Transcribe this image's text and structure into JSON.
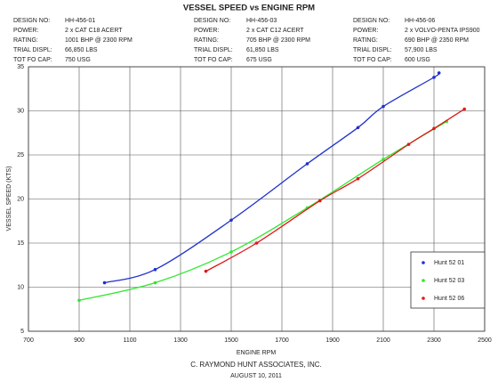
{
  "chart_data": {
    "type": "line",
    "title": "VESSEL SPEED vs ENGINE RPM",
    "specs": [
      [
        [
          "DESIGN NO:",
          "HH-456-01"
        ],
        [
          "POWER:",
          "2 x CAT C18 ACERT"
        ],
        [
          "RATING:",
          "1001 BHP @ 2300 RPM"
        ],
        [
          "TRIAL DISPL:",
          "66,850 LBS"
        ],
        [
          "TOT FO CAP:",
          "750 USG"
        ]
      ],
      [
        [
          "DESIGN NO:",
          "HH-456-03"
        ],
        [
          "POWER:",
          "2 x CAT C12 ACERT"
        ],
        [
          "RATING:",
          "705 BHP @ 2300 RPM"
        ],
        [
          "TRIAL DISPL:",
          "61,850 LBS"
        ],
        [
          "TOT FO CAP:",
          "675 USG"
        ]
      ],
      [
        [
          "DESIGN NO:",
          "HH-456-06"
        ],
        [
          "POWER:",
          "2 x VOLVO-PENTA IPS900"
        ],
        [
          "RATING:",
          "690 BHP @ 2350 RPM"
        ],
        [
          "TRIAL DISPL:",
          "57,900 LBS"
        ],
        [
          "TOT FO CAP:",
          "600 USG"
        ]
      ]
    ],
    "xlabel": "ENGINE RPM",
    "ylabel": "VESSEL SPEED (KTS)",
    "xlim": [
      700,
      2500
    ],
    "xticks": [
      700,
      900,
      1100,
      1300,
      1500,
      1700,
      1900,
      2100,
      2300,
      2500
    ],
    "ylim": [
      5,
      35
    ],
    "yticks": [
      5,
      10,
      15,
      20,
      25,
      30,
      35
    ],
    "grid": true,
    "legend": "lower right",
    "series": [
      {
        "name": "Hunt 52 01",
        "color": "#1f2fd0",
        "x": [
          1000,
          1200,
          1500,
          1800,
          2000,
          2100,
          2300,
          2320
        ],
        "values": [
          10.5,
          12,
          17.6,
          24,
          28.1,
          30.5,
          33.8,
          34.3
        ]
      },
      {
        "name": "Hunt 52 03",
        "color": "#2ee82e",
        "x": [
          900,
          1200,
          1500,
          1800,
          2100,
          2350
        ],
        "values": [
          8.5,
          10.5,
          14,
          19,
          24.5,
          28.8
        ]
      },
      {
        "name": "Hunt 52 06",
        "color": "#e01818",
        "x": [
          1400,
          1600,
          1850,
          2000,
          2200,
          2300,
          2420
        ],
        "values": [
          11.8,
          15,
          19.8,
          22.3,
          26.2,
          28,
          30.2
        ]
      }
    ],
    "credits": [
      "C. RAYMOND HUNT ASSOCIATES, INC.",
      "AUGUST 10, 2011"
    ]
  }
}
